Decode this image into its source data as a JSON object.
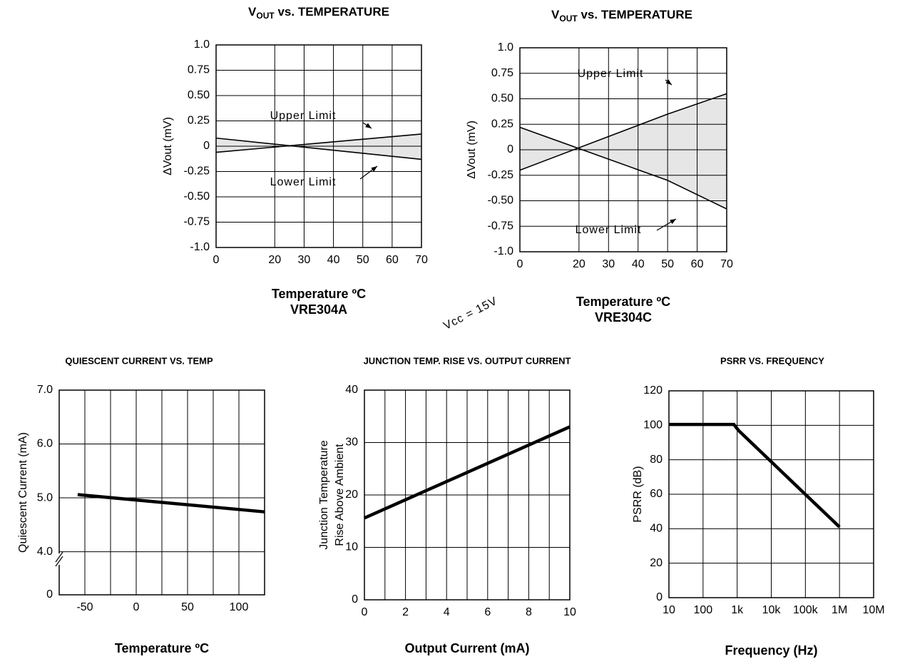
{
  "chart_data": [
    {
      "type": "line",
      "title": [
        "V",
        "OUT",
        " vs. TEMPERATURE"
      ],
      "ylabel": "ΔVout  (mV)",
      "xlabel": "Temperature ºC",
      "subtitle": "VRE304A",
      "x": [
        0,
        70
      ],
      "series": [
        {
          "name": "Upper Limit",
          "color": "#000000",
          "values": [
            -0.06,
            0.12
          ]
        },
        {
          "name": "Lower Limit",
          "color": "#000000",
          "values": [
            0.08,
            -0.13
          ]
        }
      ],
      "fill_between": true,
      "fill_color": "#e6e6e6",
      "xlim": [
        0,
        70
      ],
      "xticks": [
        0,
        20,
        30,
        40,
        50,
        60,
        70
      ],
      "ylim": [
        -1,
        1
      ],
      "yticks": [
        {
          "value": 1,
          "label": "1.0"
        },
        0.75,
        {
          "value": 0.5,
          "label": "0.50"
        },
        0.25,
        0,
        -0.25,
        {
          "value": -0.5,
          "label": "-0.50"
        },
        -0.75,
        {
          "value": -1,
          "label": "-1.0"
        }
      ],
      "grid": true
    },
    {
      "type": "line",
      "title": [
        "V",
        "OUT",
        " vs. TEMPERATURE"
      ],
      "ylabel": "ΔVout  (mV)",
      "xlabel": "Temperature ºC",
      "subtitle": "VRE304C",
      "x": [
        0,
        50,
        70
      ],
      "series": [
        {
          "name": "Upper Limit",
          "color": "#000000",
          "values": [
            -0.2,
            0.35,
            0.55
          ]
        },
        {
          "name": "Lower Limit",
          "color": "#000000",
          "values": [
            0.22,
            -0.3,
            -0.58
          ]
        }
      ],
      "fill_between": true,
      "fill_color": "#e6e6e6",
      "xlim": [
        0,
        70
      ],
      "xticks": [
        0,
        20,
        30,
        40,
        50,
        60,
        70
      ],
      "ylim": [
        -1,
        1
      ],
      "yticks": [
        {
          "value": 1,
          "label": "1.0"
        },
        0.75,
        {
          "value": 0.5,
          "label": "0.50"
        },
        0.25,
        0,
        -0.25,
        {
          "value": -0.5,
          "label": "-0.50"
        },
        -0.75,
        {
          "value": -1,
          "label": "-1.0"
        }
      ],
      "grid": true
    },
    {
      "type": "line",
      "title": "QUIESCENT CURRENT VS. TEMP",
      "ylabel": "Quiescent  Current  (mA)",
      "xlabel": "Temperature ºC",
      "x": [
        -57,
        125
      ],
      "series": [
        {
          "color": "#000000",
          "values": [
            5.06,
            4.74
          ]
        }
      ],
      "xlim": [
        -75,
        125
      ],
      "xticks": [
        -50,
        0,
        50,
        100
      ],
      "xminor": [
        -25,
        25,
        75
      ],
      "ylim": [
        3.2,
        7
      ],
      "yticks": [
        {
          "value": 4,
          "label": "4.0"
        },
        {
          "value": 5,
          "label": "5.0"
        },
        {
          "value": 6,
          "label": "6.0"
        },
        {
          "value": 7,
          "label": "7.0"
        }
      ],
      "ybreak_label": "0",
      "grid": true
    },
    {
      "type": "line",
      "title": "JUNCTION TEMP. RISE VS. OUTPUT CURRENT",
      "ylabel": [
        "Junction Temperature",
        "Rise Above Ambient"
      ],
      "xlabel": "Output Current (mA)",
      "x": [
        0,
        10
      ],
      "series": [
        {
          "name": "Vcc = 15V",
          "color": "#000000",
          "values": [
            15.6,
            33
          ]
        }
      ],
      "xlim": [
        0,
        10
      ],
      "xticks": [
        0,
        2,
        4,
        6,
        8,
        10
      ],
      "xminor": [
        1,
        3,
        5,
        7,
        9
      ],
      "ylim": [
        0,
        40
      ],
      "yticks": [
        0,
        10,
        20,
        30,
        40
      ],
      "grid": true
    },
    {
      "type": "line",
      "title": "PSRR VS. FREQUENCY",
      "ylabel": "PSRR  (dB)",
      "xlabel": "Frequency (Hz)",
      "x": [
        10,
        800,
        1100,
        1000000
      ],
      "series": [
        {
          "color": "#000000",
          "values": [
            100.5,
            100.5,
            97,
            41
          ]
        }
      ],
      "xscale": "log",
      "xlim": [
        10,
        10000000
      ],
      "xticks": [
        10,
        100,
        {
          "value": 1000,
          "label": "1k"
        },
        {
          "value": 10000,
          "label": "10k"
        },
        {
          "value": 100000,
          "label": "100k"
        },
        {
          "value": 1000000,
          "label": "1M"
        },
        {
          "value": 10000000,
          "label": "10M"
        }
      ],
      "ylim": [
        0,
        120
      ],
      "yticks": [
        0,
        20,
        40,
        60,
        80,
        100,
        120
      ],
      "grid": true
    }
  ]
}
